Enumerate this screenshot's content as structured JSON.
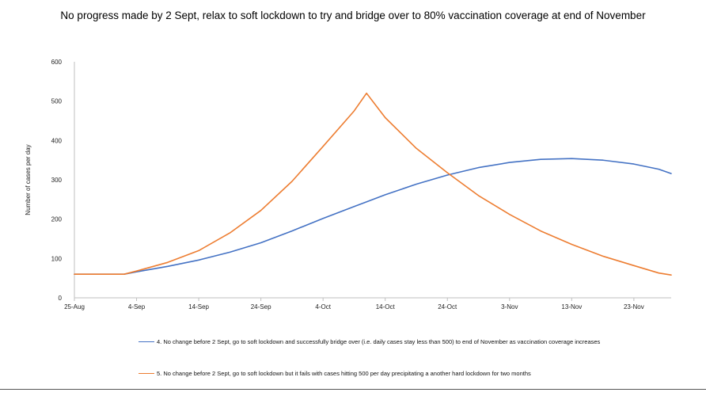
{
  "chart_data": {
    "type": "line",
    "title": "No progress made by 2 Sept, relax to soft lockdown to try and bridge over to 80% vaccination coverage at end of November",
    "ylabel": "Number of cases per day",
    "xlabel": "",
    "ylim": [
      0,
      600
    ],
    "yticks": [
      "0",
      "100",
      "200",
      "300",
      "400",
      "500",
      "600"
    ],
    "xticks": [
      "25-Aug",
      "4-Sep",
      "14-Sep",
      "24-Sep",
      "4-Oct",
      "14-Oct",
      "24-Oct",
      "3-Nov",
      "13-Nov",
      "23-Nov"
    ],
    "x": [
      "25-Aug",
      "4-Sep",
      "14-Sep",
      "24-Sep",
      "4-Oct",
      "14-Oct",
      "24-Oct",
      "3-Nov",
      "13-Nov",
      "23-Nov",
      "27-Nov",
      "29-Nov"
    ],
    "series": [
      {
        "name": "4. No change before 2 Sept, go to soft lockdown and successfully bridge over (i.e. daily cases stay less than 500) to end of November as vaccination coverage increases",
        "color": "#4472C4",
        "points": [
          [
            "25-Aug",
            60
          ],
          [
            "2-Sep",
            60
          ],
          [
            "4-Sep",
            66
          ],
          [
            "9-Sep",
            80
          ],
          [
            "14-Sep",
            96
          ],
          [
            "19-Sep",
            116
          ],
          [
            "24-Sep",
            140
          ],
          [
            "29-Sep",
            170
          ],
          [
            "4-Oct",
            202
          ],
          [
            "9-Oct",
            232
          ],
          [
            "14-Oct",
            262
          ],
          [
            "19-Oct",
            289
          ],
          [
            "24-Oct",
            312
          ],
          [
            "29-Oct",
            331
          ],
          [
            "3-Nov",
            344
          ],
          [
            "8-Nov",
            352
          ],
          [
            "13-Nov",
            354
          ],
          [
            "18-Nov",
            350
          ],
          [
            "23-Nov",
            340
          ],
          [
            "27-Nov",
            327
          ],
          [
            "29-Nov",
            316
          ]
        ]
      },
      {
        "name": "5. No change before 2 Sept, go to soft lockdown but it fails with cases hitting 500 per day precipitating a another hard lockdown for two months",
        "color": "#ED7D31",
        "points": [
          [
            "25-Aug",
            60
          ],
          [
            "2-Sep",
            60
          ],
          [
            "4-Sep",
            68
          ],
          [
            "9-Sep",
            90
          ],
          [
            "14-Sep",
            120
          ],
          [
            "19-Sep",
            165
          ],
          [
            "24-Sep",
            222
          ],
          [
            "29-Sep",
            296
          ],
          [
            "4-Oct",
            385
          ],
          [
            "9-Oct",
            475
          ],
          [
            "11-Oct",
            520
          ],
          [
            "14-Oct",
            458
          ],
          [
            "19-Oct",
            380
          ],
          [
            "24-Oct",
            318
          ],
          [
            "29-Oct",
            260
          ],
          [
            "3-Nov",
            212
          ],
          [
            "8-Nov",
            170
          ],
          [
            "13-Nov",
            136
          ],
          [
            "18-Nov",
            106
          ],
          [
            "23-Nov",
            82
          ],
          [
            "27-Nov",
            63
          ],
          [
            "29-Nov",
            58
          ]
        ]
      }
    ]
  }
}
